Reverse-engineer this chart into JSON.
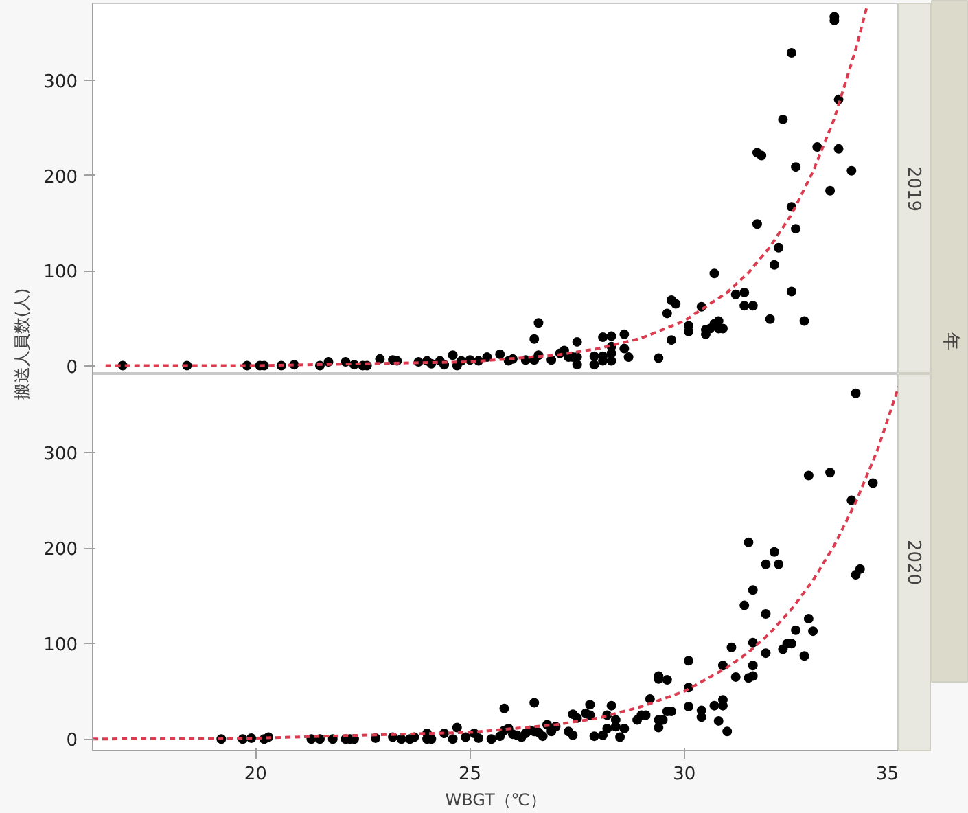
{
  "chart_data": [
    {
      "type": "scatter",
      "title": "2019",
      "ylabel": "搬送人員数(人)",
      "annotations": [
        "年"
      ],
      "xlim": [
        16.2,
        35
      ],
      "xticks": [
        20,
        25,
        30,
        35
      ],
      "ylim": [
        -9,
        381
      ],
      "yticks": [
        0,
        100,
        200,
        300
      ],
      "tick_labels": "y",
      "series": [
        {
          "marker": "circle",
          "color": "#000000",
          "x": [
            16.9,
            18.4,
            19.8,
            20.1,
            20.2,
            20.6,
            20.9,
            21.5,
            21.7,
            22.1,
            22.3,
            22.5,
            22.6,
            22.9,
            23.2,
            23.3,
            23.8,
            24.0,
            24.1,
            24.3,
            24.4,
            24.6,
            24.7,
            24.8,
            25.0,
            25.2,
            25.4,
            25.7,
            25.9,
            26.0,
            26.3,
            26.5,
            26.5,
            26.6,
            26.6,
            26.9,
            27.1,
            27.2,
            27.3,
            27.4,
            27.5,
            27.5,
            27.5,
            27.9,
            27.9,
            28.1,
            28.1,
            28.1,
            28.3,
            28.3,
            28.3,
            28.3,
            28.6,
            28.6,
            28.7,
            29.4,
            29.6,
            29.7,
            29.7,
            29.8,
            30.1,
            30.1,
            30.4,
            30.5,
            30.5,
            30.6,
            30.7,
            30.7,
            30.8,
            30.8,
            30.9,
            31.2,
            31.4,
            31.4,
            31.6,
            31.7,
            31.7,
            31.8,
            32.0,
            32.1,
            32.2,
            32.3,
            32.5,
            32.5,
            32.5,
            32.6,
            32.6,
            32.8,
            33.1,
            33.4,
            33.5,
            33.5,
            33.6,
            33.6,
            33.9
          ],
          "values": [
            0,
            0,
            0,
            0,
            0,
            0,
            1,
            0,
            4,
            4,
            1,
            0,
            0,
            7,
            6,
            5,
            4,
            5,
            2,
            5,
            1,
            11,
            0,
            5,
            6,
            5,
            9,
            12,
            5,
            7,
            6,
            6,
            28,
            45,
            11,
            6,
            13,
            16,
            9,
            9,
            25,
            9,
            1,
            10,
            1,
            30,
            10,
            5,
            31,
            20,
            13,
            5,
            33,
            18,
            9,
            8,
            55,
            69,
            27,
            65,
            42,
            36,
            62,
            38,
            33,
            39,
            44,
            97,
            47,
            39,
            39,
            75,
            77,
            63,
            63,
            149,
            224,
            221,
            49,
            106,
            124,
            259,
            329,
            167,
            78,
            209,
            144,
            47,
            230,
            184,
            367,
            363,
            280,
            228,
            205
          ]
        },
        {
          "type": "line",
          "color": "#dc3c50",
          "line_style": "dashed",
          "x": [
            16.5,
            20,
            25,
            27,
            28,
            29,
            30,
            31,
            31.5,
            32,
            32.5,
            33,
            33.5,
            34,
            34.25
          ],
          "values": [
            0,
            0,
            4,
            11,
            18,
            29,
            47,
            77,
            98,
            125,
            159,
            204,
            260,
            333,
            376
          ]
        }
      ]
    },
    {
      "type": "scatter",
      "title": "2020",
      "xlabel": "WBGT（℃）",
      "xlim": [
        16.2,
        35
      ],
      "xticks": [
        20,
        25,
        30,
        35
      ],
      "ylim": [
        -12,
        382
      ],
      "yticks": [
        0,
        100,
        200,
        300
      ],
      "series": [
        {
          "marker": "circle",
          "color": "#000000",
          "x": [
            19.2,
            19.7,
            19.9,
            20.2,
            20.3,
            21.3,
            21.5,
            21.8,
            22.1,
            22.2,
            22.3,
            22.8,
            23.2,
            23.4,
            23.6,
            23.7,
            24.0,
            24.0,
            24.1,
            24.4,
            24.6,
            24.7,
            24.9,
            25.1,
            25.2,
            25.5,
            25.7,
            25.8,
            25.8,
            25.9,
            26.0,
            26.1,
            26.2,
            26.3,
            26.4,
            26.5,
            26.5,
            26.6,
            26.7,
            26.8,
            26.9,
            27.0,
            27.3,
            27.4,
            27.4,
            27.5,
            27.7,
            27.8,
            27.8,
            27.9,
            28.1,
            28.2,
            28.2,
            28.3,
            28.4,
            28.4,
            28.5,
            28.6,
            28.9,
            29.0,
            29.1,
            29.2,
            29.4,
            29.4,
            29.5,
            29.4,
            29.4,
            29.6,
            29.6,
            29.7,
            30.1,
            30.1,
            30.1,
            30.4,
            30.4,
            30.7,
            30.8,
            30.9,
            30.9,
            30.9,
            31.0,
            31.1,
            31.2,
            31.4,
            31.5,
            31.5,
            31.6,
            31.6,
            31.6,
            31.6,
            31.9,
            31.9,
            31.9,
            32.1,
            32.2,
            32.3,
            32.4,
            32.5,
            32.6,
            32.8,
            32.9,
            32.9,
            33.0,
            33.4,
            33.9,
            34.0,
            34.0,
            34.1,
            34.4
          ],
          "values": [
            0,
            0,
            1,
            0,
            2,
            0,
            0,
            0,
            0,
            0,
            0,
            1,
            2,
            0,
            0,
            2,
            6,
            0,
            0,
            6,
            0,
            12,
            2,
            6,
            1,
            0,
            3,
            32,
            9,
            11,
            5,
            4,
            2,
            6,
            9,
            38,
            8,
            7,
            3,
            15,
            8,
            13,
            8,
            4,
            26,
            22,
            27,
            36,
            25,
            3,
            4,
            25,
            11,
            35,
            20,
            13,
            2,
            11,
            20,
            25,
            25,
            42,
            12,
            20,
            20,
            66,
            63,
            62,
            29,
            29,
            82,
            54,
            34,
            30,
            23,
            35,
            19,
            41,
            35,
            77,
            8,
            96,
            65,
            140,
            206,
            64,
            66,
            156,
            77,
            101,
            183,
            131,
            90,
            196,
            183,
            94,
            100,
            100,
            114,
            87,
            276,
            126,
            113,
            279,
            250,
            172,
            362,
            178,
            268
          ]
        },
        {
          "type": "line",
          "color": "#dc3c50",
          "line_style": "dashed",
          "x": [
            16.2,
            20,
            25,
            27,
            28,
            29,
            30,
            31,
            31.5,
            32,
            32.5,
            33,
            33.5,
            34,
            34.5,
            35
          ],
          "values": [
            0,
            1,
            7,
            15,
            22,
            34,
            50,
            75,
            91,
            111,
            136,
            166,
            203,
            248,
            302,
            369
          ]
        }
      ]
    }
  ]
}
